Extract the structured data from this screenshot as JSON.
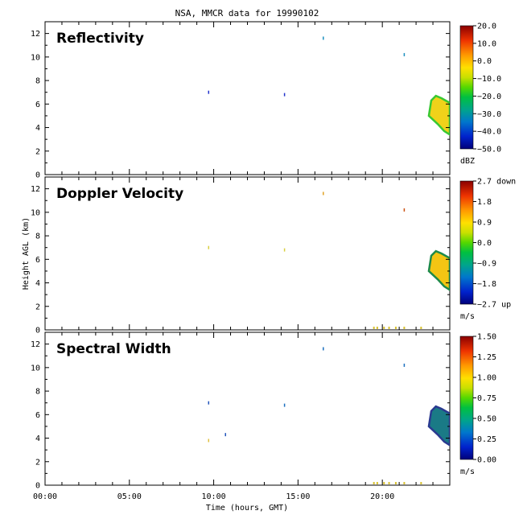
{
  "figure": {
    "title": "NSA, MMCR data for 19990102",
    "xlabel": "Time (hours, GMT)",
    "ylabel": "Height AGL (km)"
  },
  "chart_data": {
    "type": "heatmap",
    "x_ticks": [
      "00:00",
      "05:00",
      "10:00",
      "15:00",
      "20:00"
    ],
    "x_range_hours": [
      0,
      24
    ],
    "y_range_km": [
      0,
      13
    ],
    "y_ticks": [
      0,
      2,
      4,
      6,
      8,
      10,
      12
    ],
    "panels": [
      {
        "name": "Reflectivity",
        "colorbar_unit": "dBZ",
        "colorbar_ticks": [
          "20.0",
          "10.0",
          "0.0",
          "−10.0",
          "−20.0",
          "−30.0",
          "−40.0",
          "−50.0"
        ],
        "colorbar_range": [
          -50,
          20
        ],
        "cloud_region": {
          "t_start": 22.9,
          "t_end": 24.0,
          "h_bottom": 3.4,
          "h_top": 6.7,
          "fill": "#f0d21a",
          "edge": "#39c832"
        },
        "specks": [
          {
            "t": 9.7,
            "h": 7.0,
            "color": "#2233cc"
          },
          {
            "t": 14.2,
            "h": 6.8,
            "color": "#2233cc"
          },
          {
            "t": 16.5,
            "h": 11.6,
            "color": "#1b8fbf"
          },
          {
            "t": 21.3,
            "h": 10.2,
            "color": "#1b8fbf"
          }
        ],
        "ground_specks": []
      },
      {
        "name": "Doppler Velocity",
        "colorbar_unit": "m/s",
        "colorbar_ticks": [
          "2.7 down",
          "1.8",
          "0.9",
          "0.0",
          "−0.9",
          "−1.8",
          "−2.7 up"
        ],
        "colorbar_range": [
          -2.7,
          2.7
        ],
        "cloud_region": {
          "t_start": 22.9,
          "t_end": 24.0,
          "h_bottom": 3.4,
          "h_top": 6.7,
          "fill": "#f3c514",
          "edge": "#1e8a4a"
        },
        "specks": [
          {
            "t": 9.7,
            "h": 7.0,
            "color": "#d8d040"
          },
          {
            "t": 14.2,
            "h": 6.8,
            "color": "#d8d040"
          },
          {
            "t": 16.5,
            "h": 11.6,
            "color": "#e0a020"
          },
          {
            "t": 21.3,
            "h": 10.2,
            "color": "#cc5010"
          }
        ],
        "ground_specks": [
          19.5,
          19.7,
          20.1,
          20.4,
          20.8,
          21.3,
          22.3
        ]
      },
      {
        "name": "Spectral Width",
        "colorbar_unit": "m/s",
        "colorbar_ticks": [
          "1.50",
          "1.25",
          "1.00",
          "0.75",
          "0.50",
          "0.25",
          "0.00"
        ],
        "colorbar_range": [
          0,
          1.5
        ],
        "cloud_region": {
          "t_start": 22.9,
          "t_end": 24.0,
          "h_bottom": 3.4,
          "h_top": 6.7,
          "fill": "#1a7a86",
          "edge": "#2a3a90"
        },
        "specks": [
          {
            "t": 9.7,
            "h": 7.0,
            "color": "#2255bb"
          },
          {
            "t": 9.7,
            "h": 3.8,
            "color": "#e0c040"
          },
          {
            "t": 10.7,
            "h": 4.3,
            "color": "#2255bb"
          },
          {
            "t": 14.2,
            "h": 6.8,
            "color": "#1b6fbf"
          },
          {
            "t": 16.5,
            "h": 11.6,
            "color": "#1b6fbf"
          },
          {
            "t": 21.3,
            "h": 10.2,
            "color": "#1b6fbf"
          }
        ],
        "ground_specks": [
          19.5,
          19.7,
          20.1,
          20.4,
          20.8,
          21.3,
          22.3
        ]
      }
    ]
  }
}
